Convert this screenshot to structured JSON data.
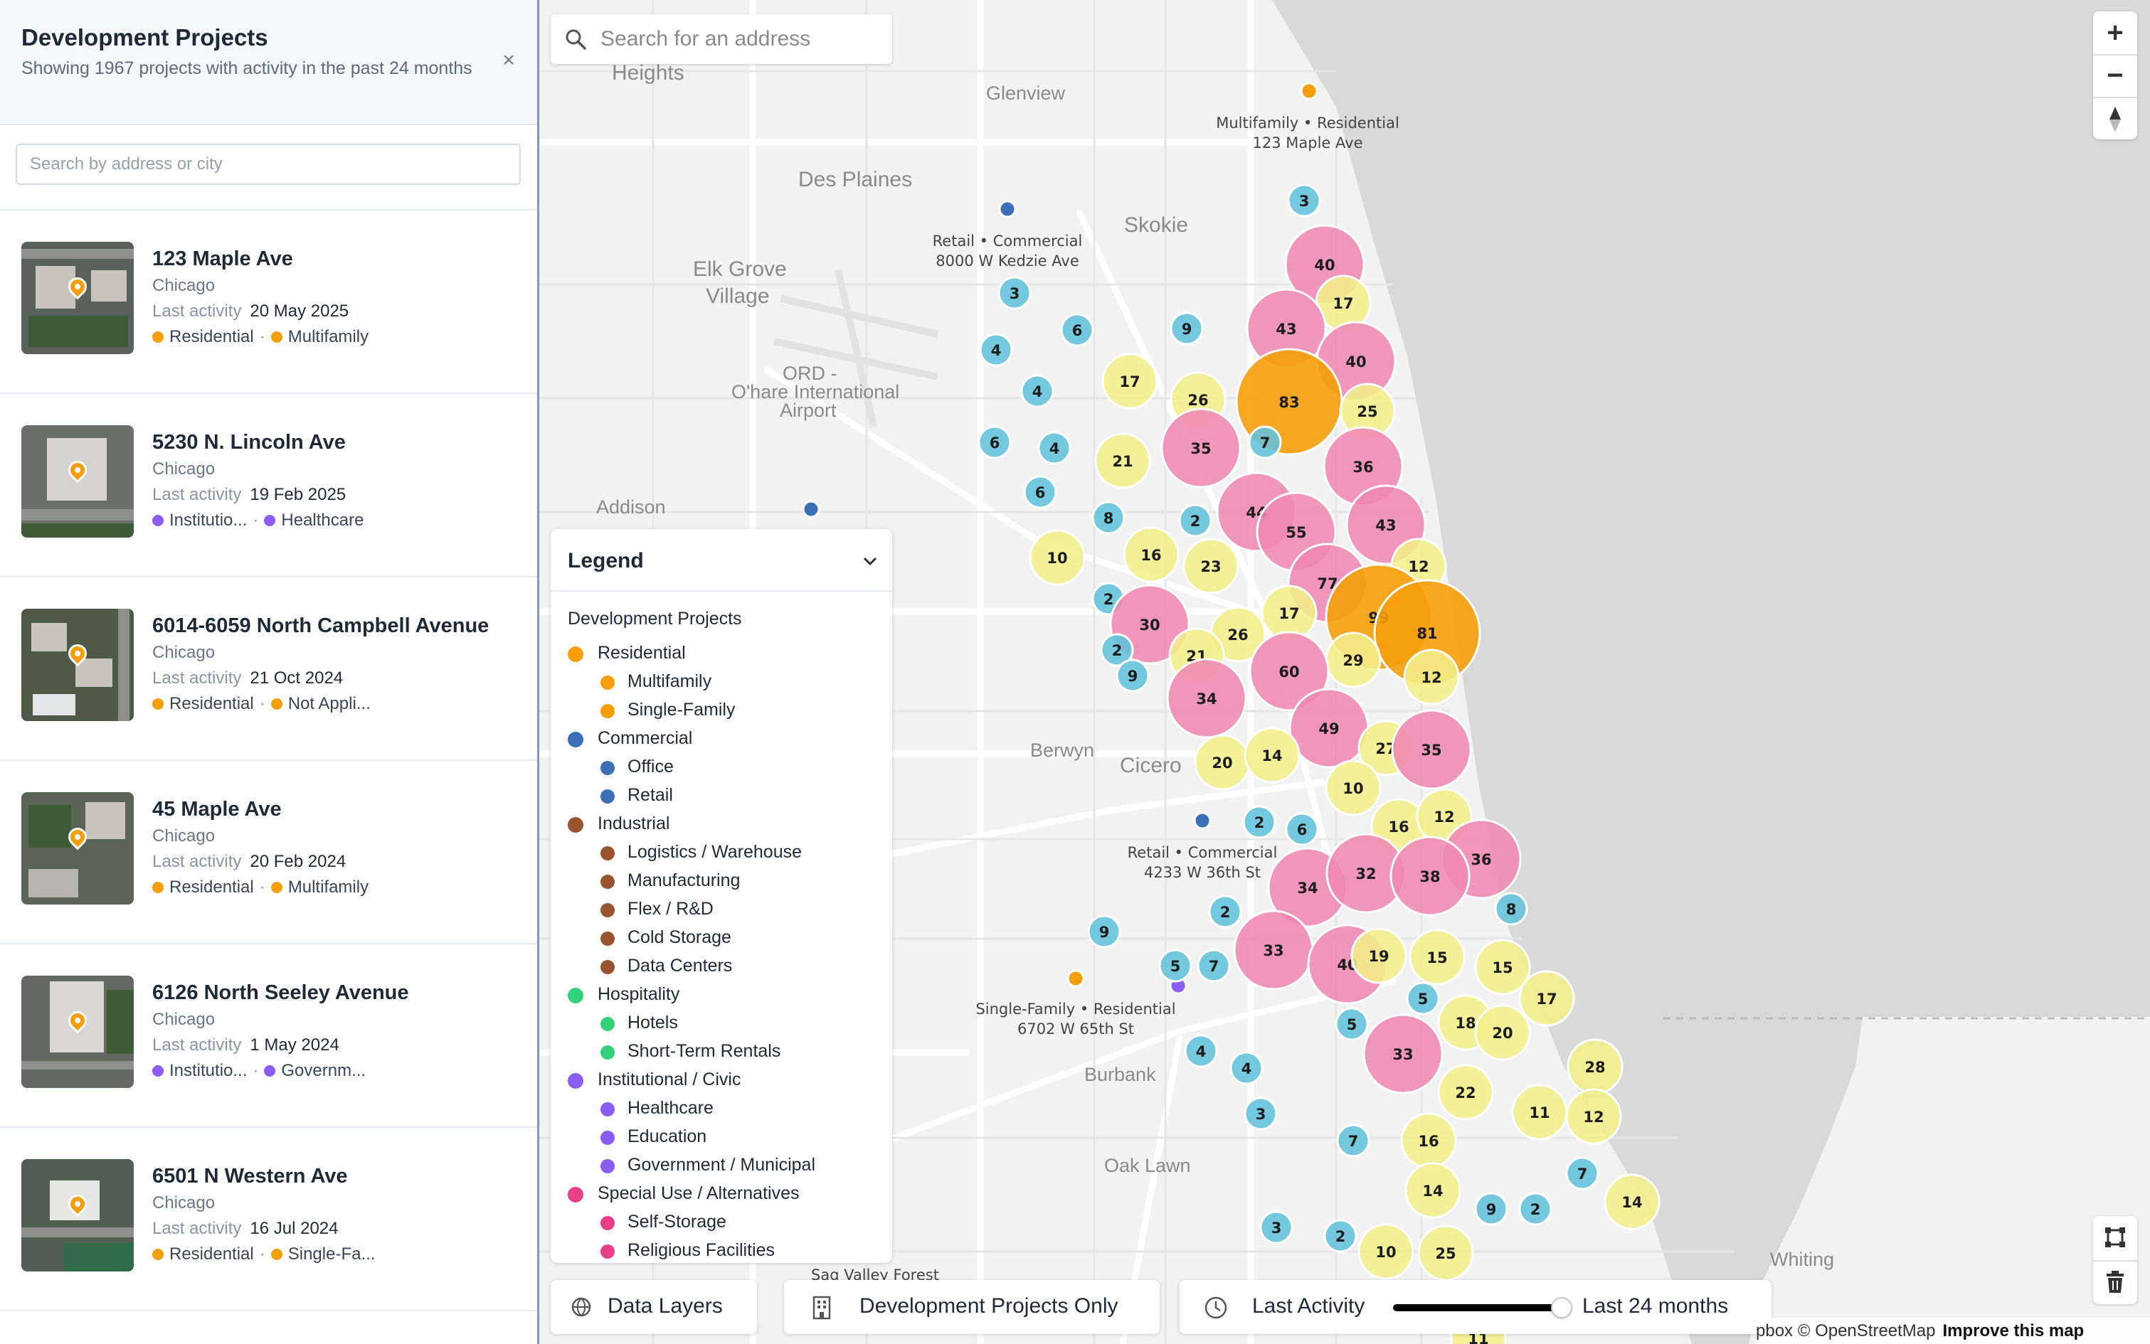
{
  "sidebar": {
    "title": "Development Projects",
    "subtitle": "Showing 1967 projects with activity in the past 24 months",
    "close_icon": "×",
    "search_placeholder": "Search by address or city",
    "projects": [
      {
        "name": "123 Maple Ave",
        "city": "Chicago",
        "activity_label": "Last activity",
        "date": "20 May 2025",
        "tag1": "Residential",
        "tag1_color": "#f59e0b",
        "tag2": "Multifamily",
        "tag2_color": "#f59e0b"
      },
      {
        "name": "5230 N. Lincoln Ave",
        "city": "Chicago",
        "activity_label": "Last activity",
        "date": "19 Feb 2025",
        "tag1": "Institutio...",
        "tag1_color": "#8b5cf6",
        "tag2": "Healthcare",
        "tag2_color": "#8b5cf6"
      },
      {
        "name": "6014-6059 North Campbell Avenue",
        "city": "Chicago",
        "activity_label": "Last activity",
        "date": "21 Oct 2024",
        "tag1": "Residential",
        "tag1_color": "#f59e0b",
        "tag2": "Not Appli...",
        "tag2_color": "#f59e0b"
      },
      {
        "name": "45 Maple Ave",
        "city": "Chicago",
        "activity_label": "Last activity",
        "date": "20 Feb 2024",
        "tag1": "Residential",
        "tag1_color": "#f59e0b",
        "tag2": "Multifamily",
        "tag2_color": "#f59e0b"
      },
      {
        "name": "6126 North Seeley Avenue",
        "city": "Chicago",
        "activity_label": "Last activity",
        "date": "1 May 2024",
        "tag1": "Institutio...",
        "tag1_color": "#8b5cf6",
        "tag2": "Governm...",
        "tag2_color": "#8b5cf6"
      },
      {
        "name": "6501 N Western Ave",
        "city": "Chicago",
        "activity_label": "Last activity",
        "date": "16 Jul 2024",
        "tag1": "Residential",
        "tag1_color": "#f59e0b",
        "tag2": "Single-Fa...",
        "tag2_color": "#f59e0b"
      }
    ]
  },
  "map": {
    "search_placeholder": "Search for an address",
    "zoom_in": "+",
    "zoom_out": "−",
    "place_labels": [
      "Heights",
      "Glenview",
      "Des Plaines",
      "Skokie",
      "Elk Grove",
      "Village",
      "ORD -",
      "O'hare International",
      "Airport",
      "Addison",
      "Berwyn",
      "Cicero",
      "Burbank",
      "Oak Lawn",
      "Whiting",
      "Sag Valley Forest"
    ],
    "callouts": [
      {
        "line1": "Multifamily • Residential",
        "line2": "123 Maple Ave"
      },
      {
        "line1": "Retail • Commercial",
        "line2": "8000 W Kedzie Ave"
      },
      {
        "line1": "Retail • Commercial",
        "line2": "4233 W 36th St"
      },
      {
        "line1": "Single-Family • Residential",
        "line2": "6702 W 65th St"
      }
    ],
    "cluster_colors": {
      "small": "#62c3dc",
      "medium": "#f2ef8a",
      "large": "#ef89b3",
      "xlarge": "#f59e0b"
    },
    "clusters": [
      {
        "n": 3,
        "s": "small"
      },
      {
        "n": 40,
        "s": "large"
      },
      {
        "n": 17,
        "s": "medium"
      },
      {
        "n": 43,
        "s": "large"
      },
      {
        "n": 40,
        "s": "large"
      },
      {
        "n": 3,
        "s": "small"
      },
      {
        "n": 6,
        "s": "small"
      },
      {
        "n": 9,
        "s": "small"
      },
      {
        "n": 4,
        "s": "small"
      },
      {
        "n": 4,
        "s": "small"
      },
      {
        "n": 17,
        "s": "medium"
      },
      {
        "n": 26,
        "s": "medium"
      },
      {
        "n": 83,
        "s": "xlarge"
      },
      {
        "n": 25,
        "s": "medium"
      },
      {
        "n": 6,
        "s": "small"
      },
      {
        "n": 4,
        "s": "small"
      },
      {
        "n": 21,
        "s": "medium"
      },
      {
        "n": 35,
        "s": "large"
      },
      {
        "n": 7,
        "s": "small"
      },
      {
        "n": 36,
        "s": "large"
      },
      {
        "n": 6,
        "s": "small"
      },
      {
        "n": 8,
        "s": "small"
      },
      {
        "n": 2,
        "s": "small"
      },
      {
        "n": 44,
        "s": "large"
      },
      {
        "n": 55,
        "s": "large"
      },
      {
        "n": 43,
        "s": "large"
      },
      {
        "n": 10,
        "s": "medium"
      },
      {
        "n": 16,
        "s": "medium"
      },
      {
        "n": 23,
        "s": "medium"
      },
      {
        "n": 12,
        "s": "medium"
      },
      {
        "n": 77,
        "s": "large"
      },
      {
        "n": 2,
        "s": "small"
      },
      {
        "n": 30,
        "s": "large"
      },
      {
        "n": 17,
        "s": "medium"
      },
      {
        "n": 99,
        "s": "xlarge"
      },
      {
        "n": 81,
        "s": "xlarge"
      },
      {
        "n": 2,
        "s": "small"
      },
      {
        "n": 26,
        "s": "medium"
      },
      {
        "n": 21,
        "s": "medium"
      },
      {
        "n": 29,
        "s": "medium"
      },
      {
        "n": 9,
        "s": "small"
      },
      {
        "n": 60,
        "s": "large"
      },
      {
        "n": 12,
        "s": "medium"
      },
      {
        "n": 34,
        "s": "large"
      },
      {
        "n": 49,
        "s": "large"
      },
      {
        "n": 20,
        "s": "medium"
      },
      {
        "n": 14,
        "s": "medium"
      },
      {
        "n": 27,
        "s": "medium"
      },
      {
        "n": 35,
        "s": "large"
      },
      {
        "n": 10,
        "s": "medium"
      },
      {
        "n": 2,
        "s": "small"
      },
      {
        "n": 6,
        "s": "small"
      },
      {
        "n": 16,
        "s": "medium"
      },
      {
        "n": 12,
        "s": "medium"
      },
      {
        "n": 36,
        "s": "large"
      },
      {
        "n": 34,
        "s": "large"
      },
      {
        "n": 32,
        "s": "large"
      },
      {
        "n": 38,
        "s": "large"
      },
      {
        "n": 2,
        "s": "small"
      },
      {
        "n": 8,
        "s": "small"
      },
      {
        "n": 9,
        "s": "small"
      },
      {
        "n": 33,
        "s": "large"
      },
      {
        "n": 40,
        "s": "large"
      },
      {
        "n": 19,
        "s": "medium"
      },
      {
        "n": 15,
        "s": "medium"
      },
      {
        "n": 15,
        "s": "medium"
      },
      {
        "n": 5,
        "s": "small"
      },
      {
        "n": 7,
        "s": "small"
      },
      {
        "n": 5,
        "s": "small"
      },
      {
        "n": 17,
        "s": "medium"
      },
      {
        "n": 5,
        "s": "small"
      },
      {
        "n": 18,
        "s": "medium"
      },
      {
        "n": 20,
        "s": "medium"
      },
      {
        "n": 33,
        "s": "large"
      },
      {
        "n": 4,
        "s": "small"
      },
      {
        "n": 4,
        "s": "small"
      },
      {
        "n": 28,
        "s": "medium"
      },
      {
        "n": 22,
        "s": "medium"
      },
      {
        "n": 11,
        "s": "medium"
      },
      {
        "n": 12,
        "s": "medium"
      },
      {
        "n": 3,
        "s": "small"
      },
      {
        "n": 7,
        "s": "small"
      },
      {
        "n": 16,
        "s": "medium"
      },
      {
        "n": 7,
        "s": "small"
      },
      {
        "n": 14,
        "s": "medium"
      },
      {
        "n": 14,
        "s": "medium"
      },
      {
        "n": 9,
        "s": "small"
      },
      {
        "n": 3,
        "s": "small"
      },
      {
        "n": 2,
        "s": "small"
      },
      {
        "n": 10,
        "s": "medium"
      },
      {
        "n": 25,
        "s": "medium"
      },
      {
        "n": 2,
        "s": "small"
      },
      {
        "n": 11,
        "s": "medium"
      }
    ],
    "attribution": "pbox © OpenStreetMap",
    "improve_link": "Improve this map"
  },
  "legend": {
    "title": "Legend",
    "section": "Development Projects",
    "items": [
      {
        "label": "Residential",
        "level": "cat",
        "color": "#f59e0b"
      },
      {
        "label": "Multifamily",
        "level": "sub",
        "color": "#f59e0b"
      },
      {
        "label": "Single-Family",
        "level": "sub",
        "color": "#f59e0b"
      },
      {
        "label": "Commercial",
        "level": "cat",
        "color": "#3b6fb8"
      },
      {
        "label": "Office",
        "level": "sub",
        "color": "#3b6fb8"
      },
      {
        "label": "Retail",
        "level": "sub",
        "color": "#3b6fb8"
      },
      {
        "label": "Industrial",
        "level": "cat",
        "color": "#9a5530"
      },
      {
        "label": "Logistics / Warehouse",
        "level": "sub",
        "color": "#9a5530"
      },
      {
        "label": "Manufacturing",
        "level": "sub",
        "color": "#9a5530"
      },
      {
        "label": "Flex / R&D",
        "level": "sub",
        "color": "#9a5530"
      },
      {
        "label": "Cold Storage",
        "level": "sub",
        "color": "#9a5530"
      },
      {
        "label": "Data Centers",
        "level": "sub",
        "color": "#9a5530"
      },
      {
        "label": "Hospitality",
        "level": "cat",
        "color": "#34d27a"
      },
      {
        "label": "Hotels",
        "level": "sub",
        "color": "#34d27a"
      },
      {
        "label": "Short-Term Rentals",
        "level": "sub",
        "color": "#34d27a"
      },
      {
        "label": "Institutional / Civic",
        "level": "cat",
        "color": "#8b5cf6"
      },
      {
        "label": "Healthcare",
        "level": "sub",
        "color": "#8b5cf6"
      },
      {
        "label": "Education",
        "level": "sub",
        "color": "#8b5cf6"
      },
      {
        "label": "Government / Municipal",
        "level": "sub",
        "color": "#8b5cf6"
      },
      {
        "label": "Special Use / Alternatives",
        "level": "cat",
        "color": "#e9408a"
      },
      {
        "label": "Self-Storage",
        "level": "sub",
        "color": "#e9408a"
      },
      {
        "label": "Religious Facilities",
        "level": "sub",
        "color": "#e9408a"
      }
    ]
  },
  "bottombar": {
    "data_layers": "Data Layers",
    "dev_only": "Development Projects Only",
    "last_activity": "Last Activity",
    "range": "Last 24 months",
    "range_value_pct": 100
  }
}
